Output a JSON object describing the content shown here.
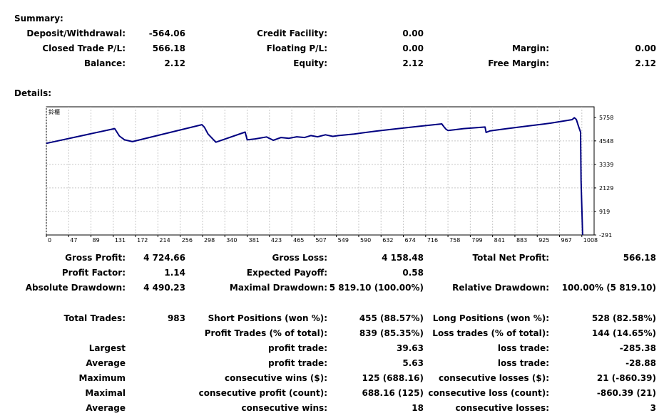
{
  "summary": {
    "title": "Summary:",
    "rows": [
      [
        {
          "label": "Deposit/Withdrawal:",
          "value": "-564.06"
        },
        {
          "label": "Credit Facility:",
          "value": "0.00"
        },
        {
          "label": "",
          "value": ""
        }
      ],
      [
        {
          "label": "Closed Trade P/L:",
          "value": "566.18"
        },
        {
          "label": "Floating P/L:",
          "value": "0.00"
        },
        {
          "label": "Margin:",
          "value": "0.00"
        }
      ],
      [
        {
          "label": "Balance:",
          "value": "2.12"
        },
        {
          "label": "Equity:",
          "value": "2.12"
        },
        {
          "label": "Free Margin:",
          "value": "2.12"
        }
      ]
    ]
  },
  "details": {
    "title": "Details:",
    "rows": [
      [
        {
          "label": "Gross Profit:",
          "value": "4 724.66"
        },
        {
          "label": "Gross Loss:",
          "value": "4 158.48"
        },
        {
          "label": "Total Net Profit:",
          "value": "566.18"
        }
      ],
      [
        {
          "label": "Profit Factor:",
          "value": "1.14"
        },
        {
          "label": "Expected Payoff:",
          "value": "0.58"
        },
        {
          "label": "",
          "value": ""
        }
      ],
      [
        {
          "label": "Absolute Drawdown:",
          "value": "4 490.23"
        },
        {
          "label": "Maximal Drawdown:",
          "value": "5 819.10 (100.00%)"
        },
        {
          "label": "Relative Drawdown:",
          "value": "100.00% (5 819.10)"
        }
      ],
      [
        {
          "label": "Total Trades:",
          "value": "983"
        },
        {
          "label": "Short Positions (won %):",
          "value": "455 (88.57%)"
        },
        {
          "label": "Long Positions (won %):",
          "value": "528 (82.58%)"
        }
      ],
      [
        {
          "label": "",
          "value": ""
        },
        {
          "label": "Profit Trades (% of total):",
          "value": "839 (85.35%)"
        },
        {
          "label": "Loss trades (% of total):",
          "value": "144 (14.65%)"
        }
      ],
      [
        {
          "label": "Largest",
          "value": ""
        },
        {
          "label": "profit trade:",
          "value": "39.63"
        },
        {
          "label": "loss trade:",
          "value": "-285.38"
        }
      ],
      [
        {
          "label": "Average",
          "value": ""
        },
        {
          "label": "profit trade:",
          "value": "5.63"
        },
        {
          "label": "loss trade:",
          "value": "-28.88"
        }
      ],
      [
        {
          "label": "Maximum",
          "value": ""
        },
        {
          "label": "consecutive wins ($):",
          "value": "125 (688.16)"
        },
        {
          "label": "consecutive losses ($):",
          "value": "21 (-860.39)"
        }
      ],
      [
        {
          "label": "Maximal",
          "value": ""
        },
        {
          "label": "consecutive profit (count):",
          "value": "688.16 (125)"
        },
        {
          "label": "consecutive loss (count):",
          "value": "-860.39 (21)"
        }
      ],
      [
        {
          "label": "Average",
          "value": ""
        },
        {
          "label": "consecutive wins:",
          "value": "18"
        },
        {
          "label": "consecutive losses:",
          "value": "3"
        }
      ]
    ]
  },
  "chart_data": {
    "type": "line",
    "title": "",
    "corner_label": "鈴櫃",
    "line_color": "#000080",
    "grid": true,
    "xlim": [
      0,
      1050
    ],
    "ylim": [
      -291,
      6300
    ],
    "x_ticks": [
      "0",
      "47",
      "89",
      "131",
      "172",
      "214",
      "256",
      "298",
      "340",
      "381",
      "423",
      "465",
      "507",
      "549",
      "590",
      "632",
      "674",
      "716",
      "758",
      "799",
      "841",
      "883",
      "925",
      "967",
      "1008"
    ],
    "y_ticks": [
      5758,
      4548,
      3339,
      2129,
      919,
      -291
    ],
    "series": [
      {
        "x": [
          0,
          131,
          140,
          150,
          165,
          298,
          303,
          310,
          325,
          381,
          385,
          400,
          422,
          435,
          450,
          465,
          480,
          495,
          507,
          520,
          535,
          549,
          560,
          590,
          632,
          674,
          716,
          758,
          762,
          766,
          770,
          800,
          841,
          843,
          850,
          883,
          925,
          967,
          1008,
          1012,
          1016,
          1020,
          1024,
          1025,
          1028
        ],
        "y": [
          4420,
          5180,
          4800,
          4600,
          4510,
          5380,
          5250,
          4900,
          4480,
          5000,
          4600,
          4650,
          4750,
          4580,
          4720,
          4680,
          4760,
          4720,
          4820,
          4760,
          4860,
          4780,
          4820,
          4900,
          5050,
          5180,
          5300,
          5420,
          5280,
          5150,
          5080,
          5180,
          5260,
          4980,
          5060,
          5180,
          5320,
          5460,
          5640,
          5740,
          5650,
          5300,
          5000,
          2500,
          -291
        ]
      }
    ]
  }
}
